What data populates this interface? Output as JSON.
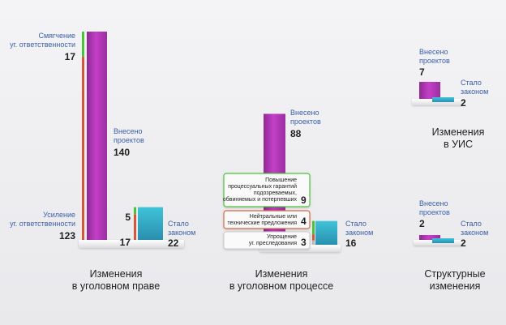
{
  "colors": {
    "introduced": "#b43ab8",
    "law": "#3bb2c8",
    "softening": "#4cc23a",
    "strengthening": "#d4563c",
    "label": "#3a5fa8"
  },
  "chart_data": [
    {
      "type": "bar",
      "title": "Изменения в уголовном праве",
      "title_lines": [
        "Изменения",
        "в уголовном праве"
      ],
      "introduced": {
        "label_lines": [
          "Внесено",
          "проектов"
        ],
        "value": 140
      },
      "became_law": {
        "label_lines": [
          "Стало",
          "законом"
        ],
        "value": 22
      },
      "introduced_breakdown": [
        {
          "name_lines": [
            "Смягчение",
            "уг. ответственности"
          ],
          "value": 17
        },
        {
          "name_lines": [
            "Усиление",
            "уг. ответственности"
          ],
          "value": 123
        }
      ],
      "law_breakdown": [
        {
          "name": "Смягчение",
          "value": 5
        },
        {
          "name": "Усиление",
          "value": 17
        }
      ]
    },
    {
      "type": "bar",
      "title": "Изменения в уголовном процессе",
      "title_lines": [
        "Изменения",
        "в уголовном процессе"
      ],
      "introduced": {
        "label_lines": [
          "Внесено",
          "проектов"
        ],
        "value": 88
      },
      "became_law": {
        "label_lines": [
          "Стало",
          "законом"
        ],
        "value": 16
      },
      "law_breakdown": [
        {
          "name_lines": [
            "Повышение",
            "процессуальных гарантий",
            "подозреваемых,",
            "обвиняемых и потерпевших"
          ],
          "value": 9
        },
        {
          "name_lines": [
            "Нейтральные или",
            "технические предложения"
          ],
          "value": 4
        },
        {
          "name_lines": [
            "Упрощение",
            "уг. преследования"
          ],
          "value": 3
        }
      ]
    },
    {
      "type": "bar",
      "title": "Изменения в УИС",
      "title_lines": [
        "Изменения",
        "в УИС"
      ],
      "introduced": {
        "label_lines": [
          "Внесено",
          "проектов"
        ],
        "value": 7
      },
      "became_law": {
        "label_lines": [
          "Стало",
          "законом"
        ],
        "value": 2
      }
    },
    {
      "type": "bar",
      "title": "Структурные изменения",
      "title_lines": [
        "Структурные",
        "изменения"
      ],
      "introduced": {
        "label_lines": [
          "Внесено",
          "проектов"
        ],
        "value": 2
      },
      "became_law": {
        "label_lines": [
          "Стало",
          "законом"
        ],
        "value": 2
      }
    }
  ]
}
